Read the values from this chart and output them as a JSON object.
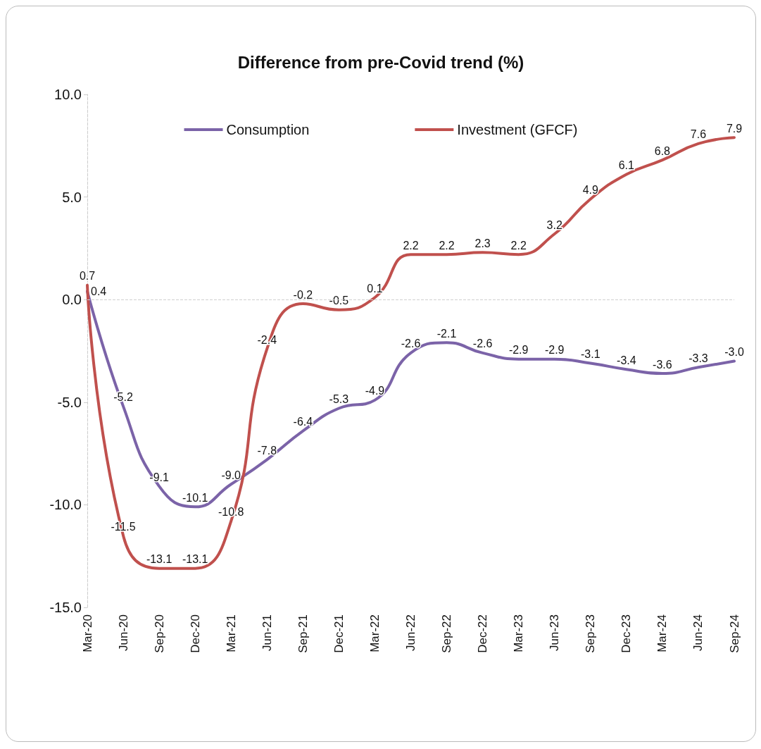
{
  "chart_data": {
    "type": "line",
    "title": "Difference from pre-Covid trend (%)",
    "categories": [
      "Mar-20",
      "Jun-20",
      "Sep-20",
      "Dec-20",
      "Mar-21",
      "Jun-21",
      "Sep-21",
      "Dec-21",
      "Mar-22",
      "Jun-22",
      "Sep-22",
      "Dec-22",
      "Mar-23",
      "Jun-23",
      "Sep-23",
      "Dec-23",
      "Mar-24",
      "Jun-24",
      "Sep-24"
    ],
    "series": [
      {
        "name": "Consumption",
        "color": "#7b63a8",
        "values": [
          0.4,
          -5.2,
          -9.1,
          -10.1,
          -9.0,
          -7.8,
          -6.4,
          -5.3,
          -4.9,
          -2.6,
          -2.1,
          -2.6,
          -2.9,
          -2.9,
          -3.1,
          -3.4,
          -3.6,
          -3.3,
          -3.0
        ],
        "value_labels": [
          "0.4",
          "-5.2",
          "-9.1",
          "-10.1",
          "-9.0",
          "-7.8",
          "-6.4",
          "-5.3",
          "-4.9",
          "-2.6",
          "-2.1",
          "-2.6",
          "-2.9",
          "-2.9",
          "-3.1",
          "-3.4",
          "-3.6",
          "-3.3",
          "-3.0"
        ]
      },
      {
        "name": "Investment (GFCF)",
        "color": "#c0504d",
        "values": [
          0.7,
          -11.5,
          -13.1,
          -13.1,
          -10.8,
          -2.4,
          -0.2,
          -0.5,
          0.1,
          2.2,
          2.2,
          2.3,
          2.2,
          3.2,
          4.9,
          6.1,
          6.8,
          7.6,
          7.9
        ],
        "value_labels": [
          "0.7",
          "-11.5",
          "-13.1",
          "-13.1",
          "-10.8",
          "-2.4",
          "-0.2",
          "-0.5",
          "0.1",
          "2.2",
          "2.2",
          "2.3",
          "2.2",
          "3.2",
          "4.9",
          "6.1",
          "6.8",
          "7.6",
          "7.9"
        ]
      }
    ],
    "ylim": [
      -15,
      10
    ],
    "yticks": [
      {
        "value": -15,
        "label": "-15.0"
      },
      {
        "value": -10,
        "label": "-10.0"
      },
      {
        "value": -5,
        "label": "-5.0"
      },
      {
        "value": 0,
        "label": "0.0"
      },
      {
        "value": 5,
        "label": "5.0"
      },
      {
        "value": 10,
        "label": "10.0"
      }
    ],
    "ref_lines": [
      {
        "axis": "y",
        "value": 0,
        "color": "#d0d0d0",
        "line_style": "dashed"
      }
    ],
    "grid": false,
    "legend": "top",
    "marker": "none",
    "line_style": "solid"
  }
}
